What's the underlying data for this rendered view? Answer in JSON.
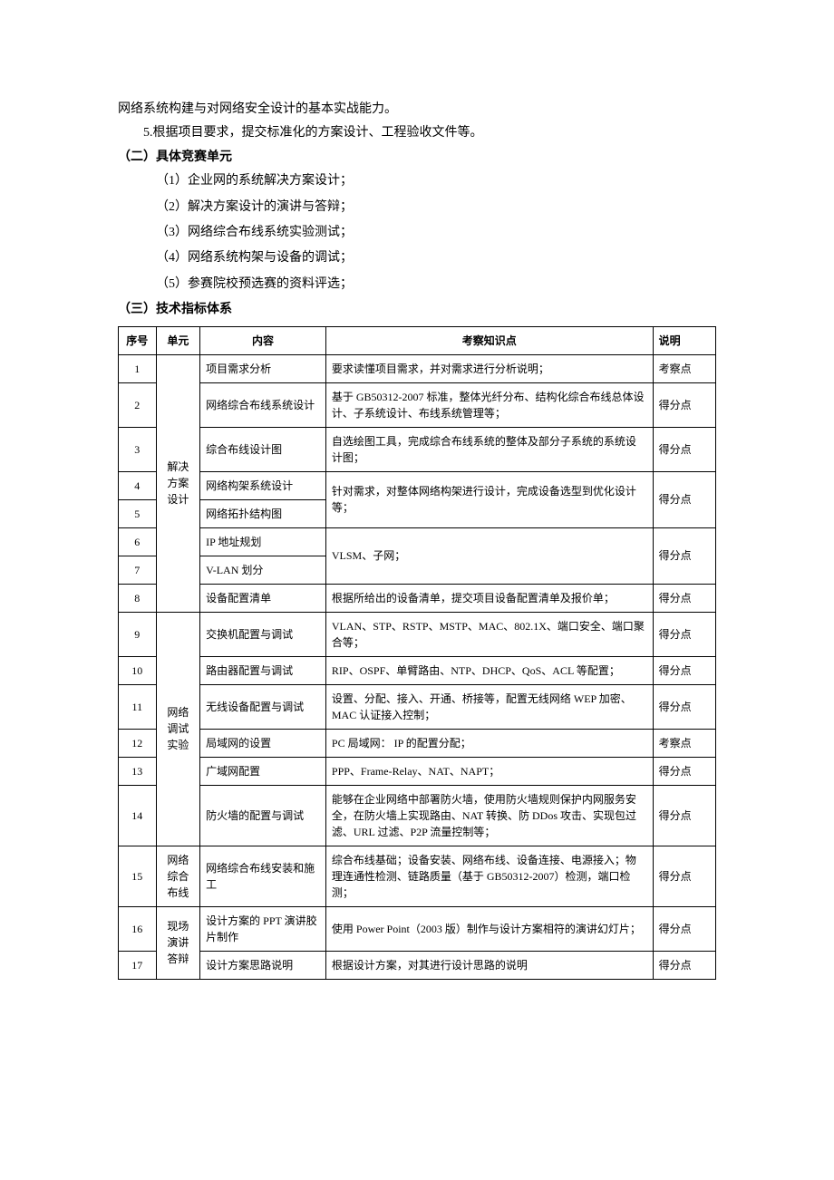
{
  "intro": {
    "line1": "网络系统构建与对网络安全设计的基本实战能力。",
    "line2": "5.根据项目要求，提交标准化的方案设计、工程验收文件等。"
  },
  "section2": {
    "heading": "（二）具体竞赛单元",
    "items": [
      "（1）企业网的系统解决方案设计；",
      "（2）解决方案设计的演讲与答辩；",
      "（3）网络综合布线系统实验测试；",
      "（4）网络系统构架与设备的调试；",
      "（5）参赛院校预选赛的资料评选；"
    ]
  },
  "section3": {
    "heading": "（三）技术指标体系"
  },
  "table": {
    "headers": {
      "seq": "序号",
      "unit": "单元",
      "content": "内容",
      "knowledge": "考察知识点",
      "note": "说明"
    },
    "units": {
      "u1": "解决方案设计",
      "u2": "网络调试实验",
      "u3": "网络综合布线",
      "u4": "现场演讲答辩"
    },
    "rows": [
      {
        "seq": "1",
        "content": "项目需求分析",
        "knowledge": "要求读懂项目需求，并对需求进行分析说明；",
        "note": "考察点"
      },
      {
        "seq": "2",
        "content": "网络综合布线系统设计",
        "knowledge": "基于 GB50312-2007 标准，整体光纤分布、结构化综合布线总体设计、子系统设计、布线系统管理等；",
        "note": "得分点"
      },
      {
        "seq": "3",
        "content": "综合布线设计图",
        "knowledge": "自选绘图工具，完成综合布线系统的整体及部分子系统的系统设计图；",
        "note": "得分点"
      },
      {
        "seq": "4",
        "content": "网络构架系统设计",
        "knowledge_merged": "针对需求，对整体网络构架进行设计，完成设备选型到优化设计等；",
        "note": "得分点"
      },
      {
        "seq": "5",
        "content": "网络拓扑结构图",
        "note": ""
      },
      {
        "seq": "6",
        "content": "IP 地址规划",
        "knowledge_merged": "VLSM、子网；",
        "note": "得分点"
      },
      {
        "seq": "7",
        "content": "V-LAN 划分",
        "note": ""
      },
      {
        "seq": "8",
        "content": "设备配置清单",
        "knowledge": "根据所给出的设备清单，提交项目设备配置清单及报价单；",
        "note": "得分点"
      },
      {
        "seq": "9",
        "content": "交换机配置与调试",
        "knowledge": "VLAN、STP、RSTP、MSTP、MAC、802.1X、端口安全、端口聚合等；",
        "note": "得分点"
      },
      {
        "seq": "10",
        "content": "路由器配置与调试",
        "knowledge": "RIP、OSPF、单臂路由、NTP、DHCP、QoS、ACL 等配置；",
        "note": "得分点"
      },
      {
        "seq": "11",
        "content": "无线设备配置与调试",
        "knowledge": "设置、分配、接入、开通、桥接等，配置无线网络 WEP 加密、MAC 认证接入控制；",
        "note": "得分点"
      },
      {
        "seq": "12",
        "content": "局域网的设置",
        "knowledge": "PC 局域网：  IP 的配置分配；",
        "note": "考察点"
      },
      {
        "seq": "13",
        "content": "广域网配置",
        "knowledge": "PPP、Frame-Relay、NAT、NAPT；",
        "note": "得分点"
      },
      {
        "seq": "14",
        "content": "防火墙的配置与调试",
        "knowledge": "能够在企业网络中部署防火墙，使用防火墙规则保护内网服务安全，在防火墙上实现路由、NAT 转换、防 DDos 攻击、实现包过滤、URL 过滤、P2P 流量控制等；",
        "note": "得分点"
      },
      {
        "seq": "15",
        "content": "网络综合布线安装和施工",
        "knowledge": "综合布线基础；设备安装、网络布线、设备连接、电源接入；物理连通性检测、链路质量（基于 GB50312-2007）检测，端口检测；",
        "note": "得分点"
      },
      {
        "seq": "16",
        "content": "设计方案的 PPT 演讲胶片制作",
        "knowledge": "使用 Power   Point（2003 版）制作与设计方案相符的演讲幻灯片；",
        "note": "得分点"
      },
      {
        "seq": "17",
        "content": "设计方案思路说明",
        "knowledge": "根据设计方案，对其进行设计思路的说明",
        "note": "得分点"
      }
    ]
  }
}
